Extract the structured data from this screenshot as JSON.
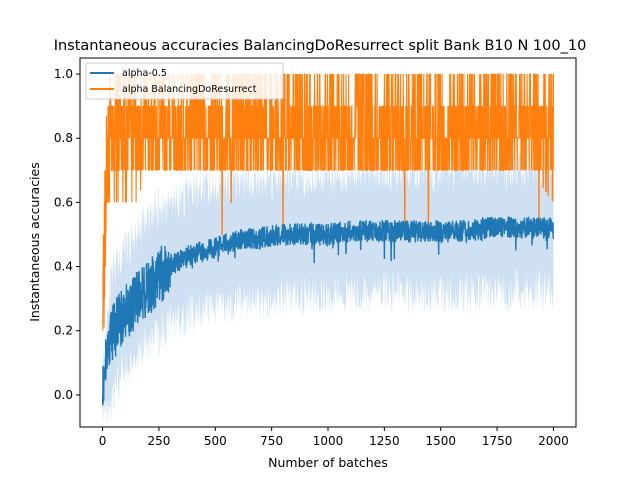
{
  "chart_data": {
    "type": "line",
    "title": "Instantaneous accuracies BalancingDoResurrect split Bank B10 N 100_10",
    "xlabel": "Number of batches",
    "ylabel": "Instantaneous accuracies",
    "xlim": [
      -100,
      2100
    ],
    "ylim": [
      -0.1,
      1.05
    ],
    "xticks": [
      0,
      250,
      500,
      750,
      1000,
      1250,
      1500,
      1750,
      2000
    ],
    "yticks": [
      0.0,
      0.2,
      0.4,
      0.6,
      0.8,
      1.0
    ],
    "xtick_labels": [
      "0",
      "250",
      "500",
      "750",
      "1000",
      "1250",
      "1500",
      "1750",
      "2000"
    ],
    "ytick_labels": [
      "0.0",
      "0.2",
      "0.4",
      "0.6",
      "0.8",
      "1.0"
    ],
    "grid": false,
    "legend_position": "top-left",
    "series": [
      {
        "name": "alpha-0.5",
        "color": "#1f77b4",
        "band_color": "#c6dbef",
        "x": [
          0,
          25,
          50,
          75,
          100,
          150,
          200,
          250,
          300,
          350,
          400,
          450,
          500,
          600,
          700,
          800,
          900,
          1000,
          1100,
          1200,
          1300,
          1400,
          1500,
          1600,
          1700,
          1800,
          1900,
          2000
        ],
        "mean": [
          0.0,
          0.15,
          0.2,
          0.23,
          0.25,
          0.3,
          0.33,
          0.37,
          0.4,
          0.42,
          0.44,
          0.45,
          0.46,
          0.48,
          0.49,
          0.5,
          0.5,
          0.5,
          0.51,
          0.51,
          0.51,
          0.51,
          0.51,
          0.51,
          0.52,
          0.52,
          0.52,
          0.52
        ],
        "lower": [
          -0.03,
          -0.05,
          0.0,
          0.05,
          0.08,
          0.12,
          0.16,
          0.19,
          0.22,
          0.24,
          0.26,
          0.27,
          0.28,
          0.29,
          0.3,
          0.3,
          0.31,
          0.31,
          0.31,
          0.32,
          0.32,
          0.32,
          0.32,
          0.32,
          0.32,
          0.32,
          0.32,
          0.32
        ],
        "upper": [
          0.05,
          0.3,
          0.38,
          0.42,
          0.45,
          0.5,
          0.55,
          0.58,
          0.6,
          0.62,
          0.63,
          0.64,
          0.65,
          0.66,
          0.67,
          0.68,
          0.68,
          0.69,
          0.69,
          0.7,
          0.7,
          0.7,
          0.7,
          0.71,
          0.71,
          0.71,
          0.71,
          0.72
        ]
      },
      {
        "name": "alpha BalancingDoResurrect",
        "color": "#ff7f0e",
        "x": [
          0,
          10,
          20,
          30,
          50,
          75,
          100,
          150,
          200,
          300,
          400,
          500,
          600,
          700,
          800,
          900,
          1000,
          1100,
          1200,
          1300,
          1400,
          1500,
          1600,
          1700,
          1800,
          1900,
          2000
        ],
        "low": [
          0.0,
          0.3,
          0.5,
          0.6,
          0.6,
          0.6,
          0.6,
          0.6,
          0.7,
          0.7,
          0.7,
          0.7,
          0.7,
          0.7,
          0.7,
          0.7,
          0.7,
          0.7,
          0.7,
          0.7,
          0.7,
          0.7,
          0.7,
          0.7,
          0.7,
          0.7,
          0.6
        ],
        "high": [
          0.5,
          0.8,
          0.9,
          1.0,
          1.0,
          1.0,
          1.0,
          1.0,
          1.0,
          1.0,
          1.0,
          1.0,
          1.0,
          1.0,
          1.0,
          1.0,
          1.0,
          1.0,
          1.0,
          1.0,
          1.0,
          1.0,
          1.0,
          1.0,
          1.0,
          1.0,
          1.0
        ],
        "dips": [
          [
            530,
            0.5
          ],
          [
            570,
            0.6
          ],
          [
            800,
            0.5
          ],
          [
            1340,
            0.5
          ],
          [
            1445,
            0.5
          ],
          [
            1935,
            0.5
          ]
        ]
      }
    ]
  }
}
